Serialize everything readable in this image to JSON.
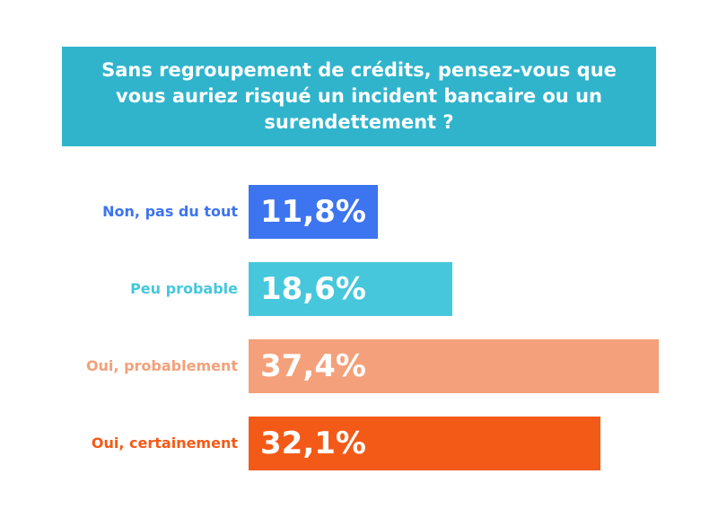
{
  "title": "Sans regroupement de crédits, pensez-vous que vous auriez risqué un incident bancaire ou un surendettement ?",
  "chart_data": {
    "type": "bar",
    "orientation": "horizontal",
    "title": "Sans regroupement de crédits, pensez-vous que vous auriez risqué un incident bancaire ou un surendettement ?",
    "categories": [
      "Non, pas du tout",
      "Peu probable",
      "Oui, probablement",
      "Oui, certainement"
    ],
    "values": [
      11.8,
      18.6,
      37.4,
      32.1
    ],
    "value_labels": [
      "11,8%",
      "18,6%",
      "37,4%",
      "32,1%"
    ],
    "colors": [
      "#3d74f0",
      "#46c7dc",
      "#f4a07a",
      "#f35a17"
    ],
    "xlim": [
      0,
      37.4
    ],
    "grid": false,
    "legend": "none"
  }
}
